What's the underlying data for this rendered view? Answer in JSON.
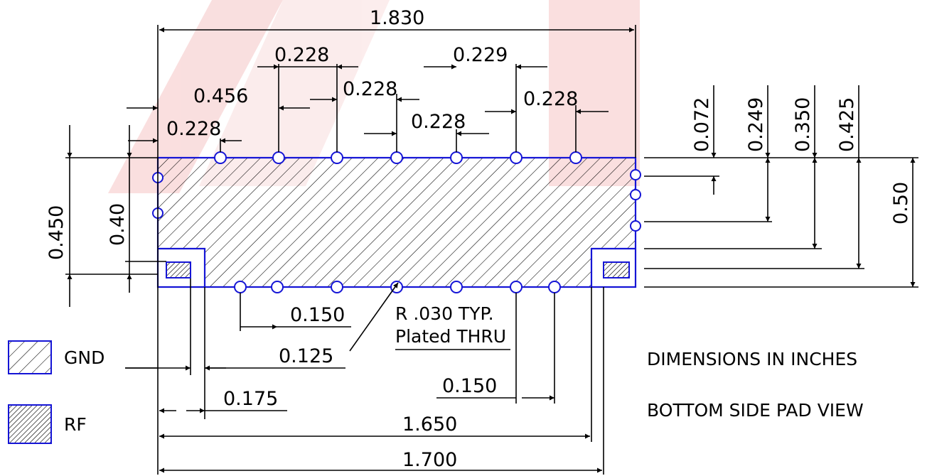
{
  "colors": {
    "outline": "#1515d6",
    "watermark": "#f2c4c4",
    "line": "#000000",
    "background": "#ffffff"
  },
  "dimensions": {
    "overall_width": "1.830",
    "pitch_top_1": "0.228",
    "pitch_top_2": "0.229",
    "pitch_mid_1": "0.228",
    "pitch_mid_2": "0.228",
    "pitch_left_456": "0.456",
    "pitch_left_228": "0.228",
    "pitch_low_228": "0.228",
    "right_072": "0.072",
    "right_249": "0.249",
    "right_350": "0.350",
    "right_425": "0.425",
    "right_050": "0.50",
    "left_450": "0.450",
    "left_040": "0.40",
    "bottom_150_left": "0.150",
    "bottom_125": "0.125",
    "bottom_175": "0.175",
    "bottom_150_right": "0.150",
    "bottom_1650": "1.650",
    "bottom_1700": "1.700"
  },
  "notes": {
    "radius_line1": "R .030 TYP.",
    "radius_line2": "Plated THRU",
    "units": "DIMENSIONS IN INCHES",
    "view": "BOTTOM SIDE PAD VIEW"
  },
  "legend": {
    "gnd": "GND",
    "rf": "RF"
  }
}
